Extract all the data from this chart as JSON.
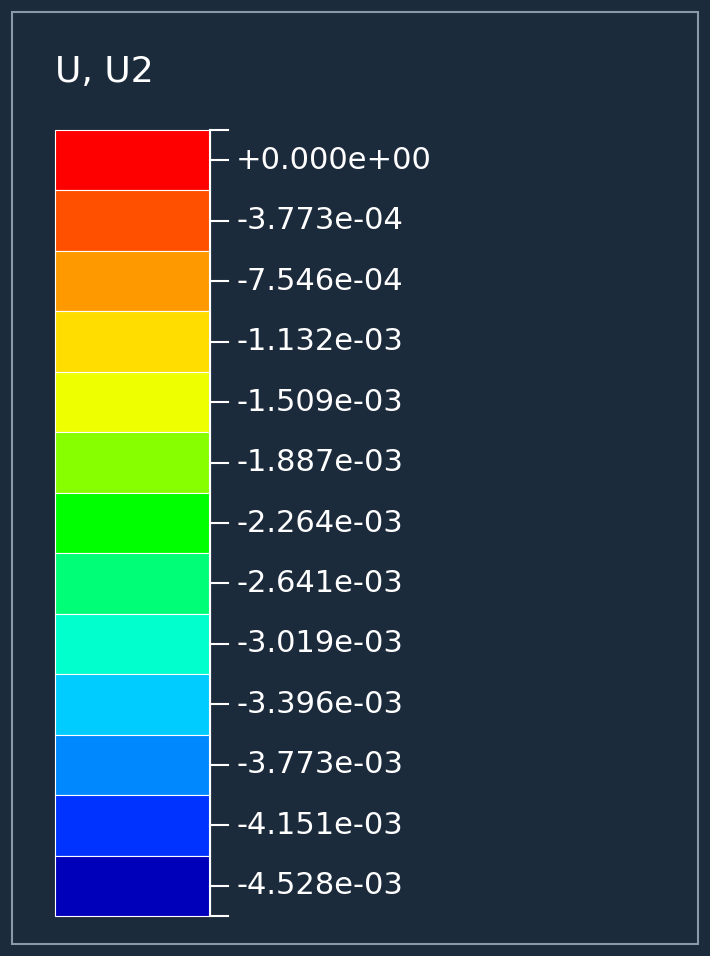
{
  "title": "U, U2",
  "background_color": "#1c2b3c",
  "border_color": "#8899aa",
  "text_color": "#ffffff",
  "title_fontsize": 26,
  "label_fontsize": 22,
  "labels": [
    "+0.000e+00",
    "-3.773e-04",
    "-7.546e-04",
    "-1.132e-03",
    "-1.509e-03",
    "-1.887e-03",
    "-2.264e-03",
    "-2.641e-03",
    "-3.019e-03",
    "-3.396e-03",
    "-3.773e-03",
    "-4.151e-03",
    "-4.528e-03"
  ],
  "colors": [
    "#ff0000",
    "#ff5000",
    "#ff9900",
    "#ffdd00",
    "#eeff00",
    "#88ff00",
    "#00ff00",
    "#00ff77",
    "#00ffcc",
    "#00ccff",
    "#0088ff",
    "#0033ff",
    "#0000bb"
  ],
  "fig_width": 7.1,
  "fig_height": 9.56,
  "dpi": 100
}
